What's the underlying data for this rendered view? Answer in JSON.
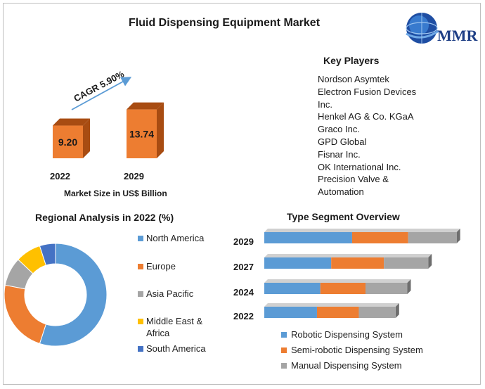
{
  "title": "Fluid Dispensing Equipment Market",
  "logo": {
    "text": "MMR",
    "icon": "globe-icon"
  },
  "key_players": {
    "title": "Key Players",
    "items": [
      "Nordson Asymtek",
      "Electron Fusion Devices Inc.",
      "Henkel AG & Co. KGaA",
      "Graco Inc.",
      "GPD Global",
      "Fisnar Inc.",
      "OK International Inc.",
      "Precision Valve & Automation"
    ]
  },
  "colors": {
    "orange": "#ED7D31",
    "orange_dark": "#A84C12",
    "blue": "#5B9BD5",
    "gray": "#A5A5A5",
    "yellow": "#FFC000",
    "dark_blue": "#4472C4",
    "arrow": "#5B9BD5"
  },
  "chart_data": [
    {
      "type": "bar",
      "title": "",
      "xlabel": "Market Size in US$ Billion",
      "categories": [
        "2022",
        "2029"
      ],
      "values": [
        9.2,
        13.74
      ],
      "value_labels": [
        "9.20",
        "13.74"
      ],
      "annotation": "CAGR 5.90%"
    },
    {
      "type": "pie",
      "title": "Regional Analysis in 2022 (%)",
      "style": "donut",
      "legend_position": "right",
      "labels": [
        "North America",
        "Europe",
        "Asia Pacific",
        "Middle East & Africa",
        "South America"
      ],
      "values": [
        55,
        23,
        9,
        8,
        5
      ]
    },
    {
      "type": "bar",
      "orientation": "horizontal",
      "stacked": true,
      "title": "Type Segment Overview",
      "legend_position": "bottom",
      "categories": [
        "2029",
        "2027",
        "2024",
        "2022"
      ],
      "series": [
        {
          "name": "Robotic Dispensing System",
          "values": [
            10.5,
            8.0,
            6.7,
            6.3
          ]
        },
        {
          "name": "Semi-robotic Dispensing System",
          "values": [
            6.7,
            6.3,
            5.4,
            5.0
          ]
        },
        {
          "name": "Manual Dispensing System",
          "values": [
            5.8,
            5.3,
            5.0,
            4.4
          ]
        }
      ]
    }
  ]
}
